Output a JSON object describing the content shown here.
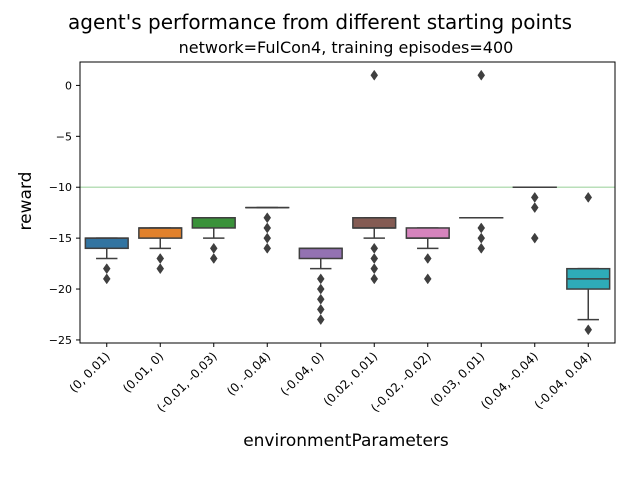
{
  "chart_data": {
    "type": "box",
    "title": "agent's performance from different starting points",
    "subtitle": "network=FulCon4, training episodes=400",
    "xlabel": "environmentParameters",
    "ylabel": "reward",
    "ylim": [
      -25.3,
      2.3
    ],
    "yticks": [
      0,
      -5,
      -10,
      -15,
      -20,
      -25
    ],
    "reference_line": {
      "y": -10,
      "color": "#b9dfb9"
    },
    "grid": false,
    "categories": [
      "(0, 0.01)",
      "(0.01, 0)",
      "(-0.01, -0.03)",
      "(0, -0.04)",
      "(-0.04, 0)",
      "(0.02, 0.01)",
      "(-0.02, -0.02)",
      "(0.03, 0.01)",
      "(0.04, -0.04)",
      "(-0.04, 0.04)"
    ],
    "boxes": [
      {
        "q1": -16,
        "median": -15,
        "q3": -15,
        "whisker_low": -17,
        "whisker_high": -15,
        "outliers": [
          -18,
          -19
        ],
        "color": "#3274a1"
      },
      {
        "q1": -15,
        "median": -14,
        "q3": -14,
        "whisker_low": -16,
        "whisker_high": -14,
        "outliers": [
          -17,
          -18
        ],
        "color": "#e1812c"
      },
      {
        "q1": -14,
        "median": -13,
        "q3": -13,
        "whisker_low": -15,
        "whisker_high": -13,
        "outliers": [
          -16,
          -17
        ],
        "color": "#3a923a"
      },
      {
        "q1": -12,
        "median": -12,
        "q3": -12,
        "whisker_low": -12,
        "whisker_high": -12,
        "outliers": [
          -13,
          -14,
          -15,
          -16
        ],
        "color": "#c03d3e"
      },
      {
        "q1": -17,
        "median": -16,
        "q3": -16,
        "whisker_low": -18,
        "whisker_high": -16,
        "outliers": [
          -19,
          -20,
          -21,
          -22,
          -23
        ],
        "color": "#9372b2"
      },
      {
        "q1": -14,
        "median": -14,
        "q3": -13,
        "whisker_low": -15,
        "whisker_high": -13,
        "outliers": [
          1,
          -16,
          -17,
          -18,
          -19
        ],
        "color": "#845b53"
      },
      {
        "q1": -15,
        "median": -15,
        "q3": -14,
        "whisker_low": -16,
        "whisker_high": -14,
        "outliers": [
          -17,
          -19
        ],
        "color": "#d684bd"
      },
      {
        "q1": -13,
        "median": -13,
        "q3": -13,
        "whisker_low": -13,
        "whisker_high": -13,
        "outliers": [
          1,
          -14,
          -15,
          -16
        ],
        "color": "#7f7f7f"
      },
      {
        "q1": -10,
        "median": -10,
        "q3": -10,
        "whisker_low": -10,
        "whisker_high": -10,
        "outliers": [
          -11,
          -12,
          -15
        ],
        "color": "#a9aa35"
      },
      {
        "q1": -20,
        "median": -19,
        "q3": -18,
        "whisker_low": -23,
        "whisker_high": -18,
        "outliers": [
          -11,
          -24
        ],
        "color": "#2eabb8"
      }
    ]
  }
}
